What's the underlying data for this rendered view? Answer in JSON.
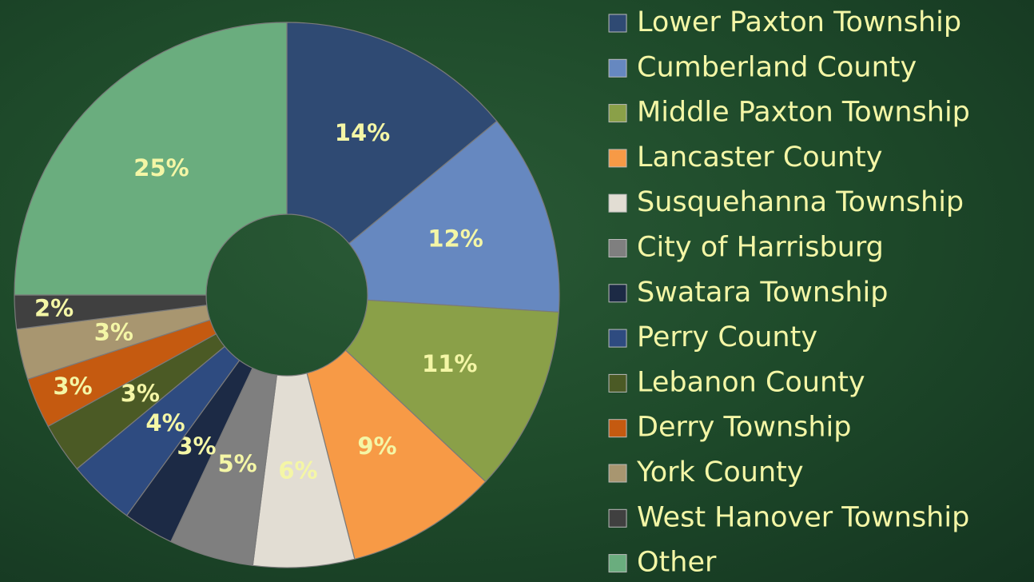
{
  "chart_data": {
    "type": "donut",
    "categories": [
      "Lower Paxton Township",
      "Cumberland County",
      "Middle Paxton Township",
      "Lancaster County",
      "Susquehanna Township",
      "City of Harrisburg",
      "Swatara Township",
      "Perry County",
      "Lebanon County",
      "Derry Township",
      "York County",
      "West Hanover Township",
      "Other"
    ],
    "values": [
      14,
      12,
      11,
      9,
      6,
      5,
      3,
      4,
      3,
      3,
      3,
      2,
      25
    ],
    "value_labels": [
      "14%",
      "12%",
      "11%",
      "9%",
      "6%",
      "5%",
      "3%",
      "4%",
      "3%",
      "3%",
      "3%",
      "2%",
      "25%"
    ],
    "colors": [
      "#2f4a73",
      "#6688c0",
      "#8aa048",
      "#f79a46",
      "#e2ddd3",
      "#7f7f7f",
      "#1c2a45",
      "#2e4b80",
      "#4b5a25",
      "#c55a10",
      "#a89670",
      "#404040",
      "#6aad7e"
    ],
    "legend": "right"
  }
}
